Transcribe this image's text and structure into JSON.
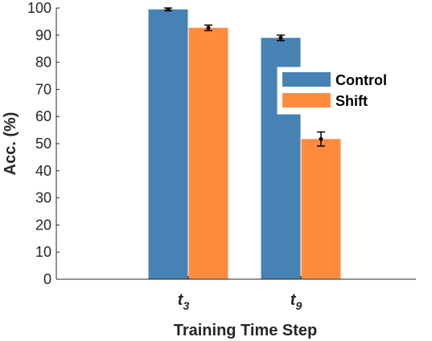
{
  "chart_data": {
    "type": "bar",
    "ylabel": "Acc. (%)",
    "xlabel": "Training Time Step",
    "categories": [
      {
        "base": "t",
        "sub": "3"
      },
      {
        "base": "t",
        "sub": "9"
      }
    ],
    "ylim": [
      0,
      100
    ],
    "yticks": [
      0,
      10,
      20,
      30,
      40,
      50,
      60,
      70,
      80,
      90,
      100
    ],
    "grid": false,
    "legend_position": "right, inside plot",
    "error_bars": true,
    "series": [
      {
        "name": "Control",
        "color": "#4682B4",
        "values": [
          99.5,
          89.0
        ],
        "errors": [
          0.5,
          1.0
        ]
      },
      {
        "name": "Shift",
        "color": "#FF8C3C",
        "values": [
          92.7,
          51.7
        ],
        "errors": [
          1.0,
          2.6
        ]
      }
    ]
  }
}
